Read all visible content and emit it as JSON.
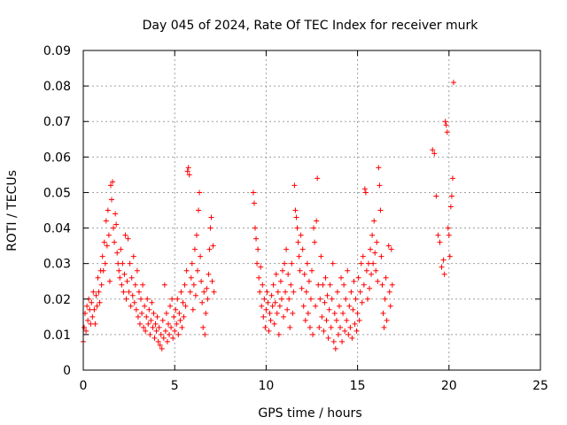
{
  "chart_data": {
    "type": "scatter",
    "title": "Day 045 of 2024, Rate Of TEC Index for receiver murk",
    "xlabel": "GPS time / hours",
    "ylabel": "ROTI / TECUs",
    "xlim": [
      0,
      25
    ],
    "ylim": [
      0,
      0.09
    ],
    "x_ticks": [
      "0",
      "5",
      "10",
      "15",
      "20",
      "25"
    ],
    "y_ticks": [
      "0",
      "0.01",
      "0.02",
      "0.03",
      "0.04",
      "0.05",
      "0.06",
      "0.07",
      "0.08",
      "0.09"
    ],
    "grid": true,
    "marker": "+",
    "color": "#ff0000",
    "series": [
      {
        "points": [
          [
            0.0,
            0.008
          ],
          [
            0.05,
            0.012
          ],
          [
            0.1,
            0.016
          ],
          [
            0.15,
            0.011
          ],
          [
            0.2,
            0.018
          ],
          [
            0.25,
            0.014
          ],
          [
            0.3,
            0.02
          ],
          [
            0.35,
            0.017
          ],
          [
            0.4,
            0.013
          ],
          [
            0.45,
            0.019
          ],
          [
            0.5,
            0.015
          ],
          [
            0.55,
            0.022
          ],
          [
            0.6,
            0.017
          ],
          [
            0.65,
            0.013
          ],
          [
            0.7,
            0.021
          ],
          [
            0.75,
            0.018
          ],
          [
            0.8,
            0.026
          ],
          [
            0.85,
            0.022
          ],
          [
            0.9,
            0.019
          ],
          [
            0.95,
            0.028
          ],
          [
            1.0,
            0.024
          ],
          [
            1.05,
            0.032
          ],
          [
            1.1,
            0.028
          ],
          [
            1.15,
            0.036
          ],
          [
            1.2,
            0.03
          ],
          [
            1.25,
            0.042
          ],
          [
            1.3,
            0.035
          ],
          [
            1.35,
            0.045
          ],
          [
            1.4,
            0.038
          ],
          [
            1.45,
            0.025
          ],
          [
            1.5,
            0.052
          ],
          [
            1.55,
            0.048
          ],
          [
            1.6,
            0.053
          ],
          [
            1.65,
            0.04
          ],
          [
            1.7,
            0.036
          ],
          [
            1.75,
            0.044
          ],
          [
            1.8,
            0.041
          ],
          [
            1.85,
            0.033
          ],
          [
            1.9,
            0.03
          ],
          [
            1.95,
            0.028
          ],
          [
            2.0,
            0.026
          ],
          [
            2.05,
            0.034
          ],
          [
            2.1,
            0.024
          ],
          [
            2.15,
            0.03
          ],
          [
            2.2,
            0.022
          ],
          [
            2.25,
            0.027
          ],
          [
            2.3,
            0.038
          ],
          [
            2.35,
            0.02
          ],
          [
            2.4,
            0.025
          ],
          [
            2.45,
            0.037
          ],
          [
            2.5,
            0.022
          ],
          [
            2.55,
            0.03
          ],
          [
            2.6,
            0.018
          ],
          [
            2.65,
            0.026
          ],
          [
            2.7,
            0.021
          ],
          [
            2.75,
            0.032
          ],
          [
            2.8,
            0.019
          ],
          [
            2.85,
            0.024
          ],
          [
            2.9,
            0.017
          ],
          [
            2.95,
            0.028
          ],
          [
            3.0,
            0.015
          ],
          [
            3.05,
            0.022
          ],
          [
            3.1,
            0.013
          ],
          [
            3.15,
            0.02
          ],
          [
            3.2,
            0.016
          ],
          [
            3.25,
            0.024
          ],
          [
            3.3,
            0.012
          ],
          [
            3.35,
            0.018
          ],
          [
            3.4,
            0.011
          ],
          [
            3.45,
            0.015
          ],
          [
            3.5,
            0.02
          ],
          [
            3.55,
            0.013
          ],
          [
            3.6,
            0.017
          ],
          [
            3.65,
            0.01
          ],
          [
            3.7,
            0.014
          ],
          [
            3.75,
            0.019
          ],
          [
            3.8,
            0.012
          ],
          [
            3.85,
            0.016
          ],
          [
            3.9,
            0.009
          ],
          [
            3.95,
            0.013
          ],
          [
            4.0,
            0.011
          ],
          [
            4.05,
            0.015
          ],
          [
            4.1,
            0.008
          ],
          [
            4.15,
            0.012
          ],
          [
            4.2,
            0.007
          ],
          [
            4.25,
            0.01
          ],
          [
            4.3,
            0.006
          ],
          [
            4.35,
            0.014
          ],
          [
            4.4,
            0.009
          ],
          [
            4.45,
            0.024
          ],
          [
            4.5,
            0.011
          ],
          [
            4.55,
            0.016
          ],
          [
            4.6,
            0.008
          ],
          [
            4.65,
            0.013
          ],
          [
            4.7,
            0.01
          ],
          [
            4.75,
            0.018
          ],
          [
            4.8,
            0.012
          ],
          [
            4.85,
            0.02
          ],
          [
            4.9,
            0.009
          ],
          [
            4.95,
            0.015
          ],
          [
            5.0,
            0.011
          ],
          [
            5.05,
            0.017
          ],
          [
            5.1,
            0.013
          ],
          [
            5.15,
            0.02
          ],
          [
            5.2,
            0.01
          ],
          [
            5.25,
            0.016
          ],
          [
            5.3,
            0.014
          ],
          [
            5.35,
            0.022
          ],
          [
            5.4,
            0.012
          ],
          [
            5.45,
            0.019
          ],
          [
            5.5,
            0.015
          ],
          [
            5.55,
            0.024
          ],
          [
            5.6,
            0.018
          ],
          [
            5.65,
            0.028
          ],
          [
            5.7,
            0.056
          ],
          [
            5.75,
            0.057
          ],
          [
            5.8,
            0.055
          ],
          [
            5.85,
            0.022
          ],
          [
            5.9,
            0.026
          ],
          [
            5.95,
            0.03
          ],
          [
            6.0,
            0.017
          ],
          [
            6.05,
            0.024
          ],
          [
            6.1,
            0.034
          ],
          [
            6.15,
            0.021
          ],
          [
            6.2,
            0.038
          ],
          [
            6.25,
            0.028
          ],
          [
            6.3,
            0.045
          ],
          [
            6.35,
            0.05
          ],
          [
            6.4,
            0.032
          ],
          [
            6.45,
            0.025
          ],
          [
            6.5,
            0.019
          ],
          [
            6.55,
            0.012
          ],
          [
            6.6,
            0.022
          ],
          [
            6.65,
            0.01
          ],
          [
            6.7,
            0.016
          ],
          [
            6.75,
            0.023
          ],
          [
            6.8,
            0.02
          ],
          [
            6.85,
            0.027
          ],
          [
            6.9,
            0.034
          ],
          [
            6.95,
            0.04
          ],
          [
            7.0,
            0.043
          ],
          [
            7.05,
            0.025
          ],
          [
            7.1,
            0.035
          ],
          [
            7.15,
            0.022
          ],
          [
            9.3,
            0.05
          ],
          [
            9.35,
            0.047
          ],
          [
            9.4,
            0.04
          ],
          [
            9.45,
            0.037
          ],
          [
            9.5,
            0.03
          ],
          [
            9.55,
            0.034
          ],
          [
            9.6,
            0.026
          ],
          [
            9.65,
            0.022
          ],
          [
            9.7,
            0.029
          ],
          [
            9.75,
            0.018
          ],
          [
            9.8,
            0.024
          ],
          [
            9.85,
            0.015
          ],
          [
            9.9,
            0.02
          ],
          [
            9.95,
            0.012
          ],
          [
            10.0,
            0.017
          ],
          [
            10.05,
            0.022
          ],
          [
            10.1,
            0.019
          ],
          [
            10.15,
            0.011
          ],
          [
            10.2,
            0.016
          ],
          [
            10.25,
            0.014
          ],
          [
            10.3,
            0.021
          ],
          [
            10.35,
            0.018
          ],
          [
            10.4,
            0.024
          ],
          [
            10.45,
            0.013
          ],
          [
            10.5,
            0.019
          ],
          [
            10.55,
            0.027
          ],
          [
            10.6,
            0.016
          ],
          [
            10.65,
            0.022
          ],
          [
            10.7,
            0.01
          ],
          [
            10.75,
            0.018
          ],
          [
            10.8,
            0.025
          ],
          [
            10.85,
            0.02
          ],
          [
            10.9,
            0.028
          ],
          [
            10.95,
            0.015
          ],
          [
            11.0,
            0.03
          ],
          [
            11.05,
            0.022
          ],
          [
            11.1,
            0.034
          ],
          [
            11.15,
            0.017
          ],
          [
            11.2,
            0.027
          ],
          [
            11.25,
            0.02
          ],
          [
            11.3,
            0.012
          ],
          [
            11.35,
            0.024
          ],
          [
            11.4,
            0.03
          ],
          [
            11.45,
            0.016
          ],
          [
            11.5,
            0.022
          ],
          [
            11.55,
            0.052
          ],
          [
            11.6,
            0.045
          ],
          [
            11.65,
            0.043
          ],
          [
            11.7,
            0.04
          ],
          [
            11.75,
            0.036
          ],
          [
            11.8,
            0.032
          ],
          [
            11.85,
            0.028
          ],
          [
            11.9,
            0.038
          ],
          [
            11.95,
            0.023
          ],
          [
            12.0,
            0.034
          ],
          [
            12.05,
            0.018
          ],
          [
            12.1,
            0.027
          ],
          [
            12.15,
            0.014
          ],
          [
            12.2,
            0.022
          ],
          [
            12.25,
            0.03
          ],
          [
            12.3,
            0.016
          ],
          [
            12.35,
            0.025
          ],
          [
            12.4,
            0.012
          ],
          [
            12.45,
            0.02
          ],
          [
            12.5,
            0.028
          ],
          [
            12.55,
            0.01
          ],
          [
            12.6,
            0.04
          ],
          [
            12.65,
            0.036
          ],
          [
            12.7,
            0.018
          ],
          [
            12.75,
            0.042
          ],
          [
            12.8,
            0.054
          ],
          [
            12.85,
            0.024
          ],
          [
            12.9,
            0.012
          ],
          [
            12.95,
            0.02
          ],
          [
            13.0,
            0.032
          ],
          [
            13.05,
            0.015
          ],
          [
            13.1,
            0.024
          ],
          [
            13.15,
            0.011
          ],
          [
            13.2,
            0.019
          ],
          [
            13.25,
            0.026
          ],
          [
            13.3,
            0.014
          ],
          [
            13.35,
            0.021
          ],
          [
            13.4,
            0.009
          ],
          [
            13.45,
            0.017
          ],
          [
            13.5,
            0.024
          ],
          [
            13.55,
            0.012
          ],
          [
            13.6,
            0.02
          ],
          [
            13.65,
            0.03
          ],
          [
            13.7,
            0.008
          ],
          [
            13.75,
            0.016
          ],
          [
            13.8,
            0.006
          ],
          [
            13.85,
            0.014
          ],
          [
            13.9,
            0.022
          ],
          [
            13.95,
            0.01
          ],
          [
            14.0,
            0.018
          ],
          [
            14.05,
            0.012
          ],
          [
            14.1,
            0.026
          ],
          [
            14.15,
            0.008
          ],
          [
            14.2,
            0.016
          ],
          [
            14.25,
            0.024
          ],
          [
            14.3,
            0.011
          ],
          [
            14.35,
            0.02
          ],
          [
            14.4,
            0.014
          ],
          [
            14.45,
            0.028
          ],
          [
            14.5,
            0.01
          ],
          [
            14.55,
            0.018
          ],
          [
            14.6,
            0.012
          ],
          [
            14.65,
            0.022
          ],
          [
            14.7,
            0.009
          ],
          [
            14.75,
            0.017
          ],
          [
            14.8,
            0.025
          ],
          [
            14.85,
            0.013
          ],
          [
            14.9,
            0.02
          ],
          [
            14.95,
            0.011
          ],
          [
            15.0,
            0.016
          ],
          [
            15.05,
            0.026
          ],
          [
            15.1,
            0.014
          ],
          [
            15.15,
            0.022
          ],
          [
            15.2,
            0.03
          ],
          [
            15.25,
            0.019
          ],
          [
            15.3,
            0.032
          ],
          [
            15.35,
            0.024
          ],
          [
            15.4,
            0.051
          ],
          [
            15.45,
            0.05
          ],
          [
            15.5,
            0.028
          ],
          [
            15.55,
            0.02
          ],
          [
            15.6,
            0.03
          ],
          [
            15.65,
            0.023
          ],
          [
            15.7,
            0.034
          ],
          [
            15.75,
            0.027
          ],
          [
            15.8,
            0.038
          ],
          [
            15.85,
            0.03
          ],
          [
            15.9,
            0.042
          ],
          [
            15.95,
            0.033
          ],
          [
            16.0,
            0.028
          ],
          [
            16.05,
            0.036
          ],
          [
            16.1,
            0.025
          ],
          [
            16.15,
            0.057
          ],
          [
            16.2,
            0.052
          ],
          [
            16.25,
            0.045
          ],
          [
            16.3,
            0.032
          ],
          [
            16.35,
            0.024
          ],
          [
            16.4,
            0.016
          ],
          [
            16.45,
            0.012
          ],
          [
            16.5,
            0.02
          ],
          [
            16.55,
            0.026
          ],
          [
            16.6,
            0.014
          ],
          [
            16.7,
            0.035
          ],
          [
            16.75,
            0.022
          ],
          [
            16.8,
            0.018
          ],
          [
            16.85,
            0.034
          ],
          [
            16.9,
            0.024
          ],
          [
            19.1,
            0.062
          ],
          [
            19.2,
            0.061
          ],
          [
            19.3,
            0.049
          ],
          [
            19.4,
            0.038
          ],
          [
            19.5,
            0.036
          ],
          [
            19.6,
            0.029
          ],
          [
            19.7,
            0.031
          ],
          [
            19.75,
            0.027
          ],
          [
            19.8,
            0.07
          ],
          [
            19.85,
            0.069
          ],
          [
            19.9,
            0.067
          ],
          [
            19.95,
            0.04
          ],
          [
            20.0,
            0.038
          ],
          [
            20.05,
            0.032
          ],
          [
            20.1,
            0.046
          ],
          [
            20.15,
            0.049
          ],
          [
            20.2,
            0.054
          ],
          [
            20.25,
            0.081
          ]
        ]
      }
    ]
  }
}
